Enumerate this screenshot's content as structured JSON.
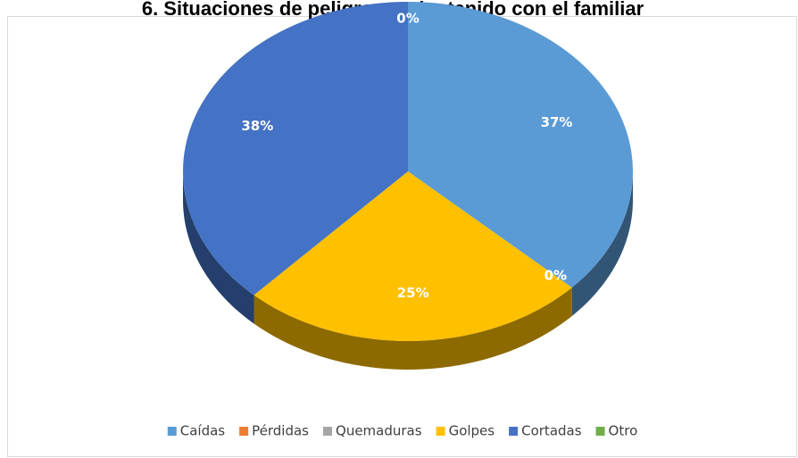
{
  "chart_data": {
    "type": "pie3d",
    "title": "6. Situaciones de peligro que ha tenido con el familiar",
    "categories": [
      "Caídas",
      "Pérdidas",
      "Quemaduras",
      "Golpes",
      "Cortadas",
      "Otro"
    ],
    "values": [
      37,
      0,
      0,
      25,
      38,
      0
    ],
    "value_labels": [
      "37%",
      "0%",
      "0%",
      "25%",
      "38%",
      "0%"
    ],
    "colors": [
      "#5b9bd5",
      "#ed7d31",
      "#a5a5a5",
      "#ffc000",
      "#4472c4",
      "#70ad47"
    ],
    "legend": "bottom"
  }
}
